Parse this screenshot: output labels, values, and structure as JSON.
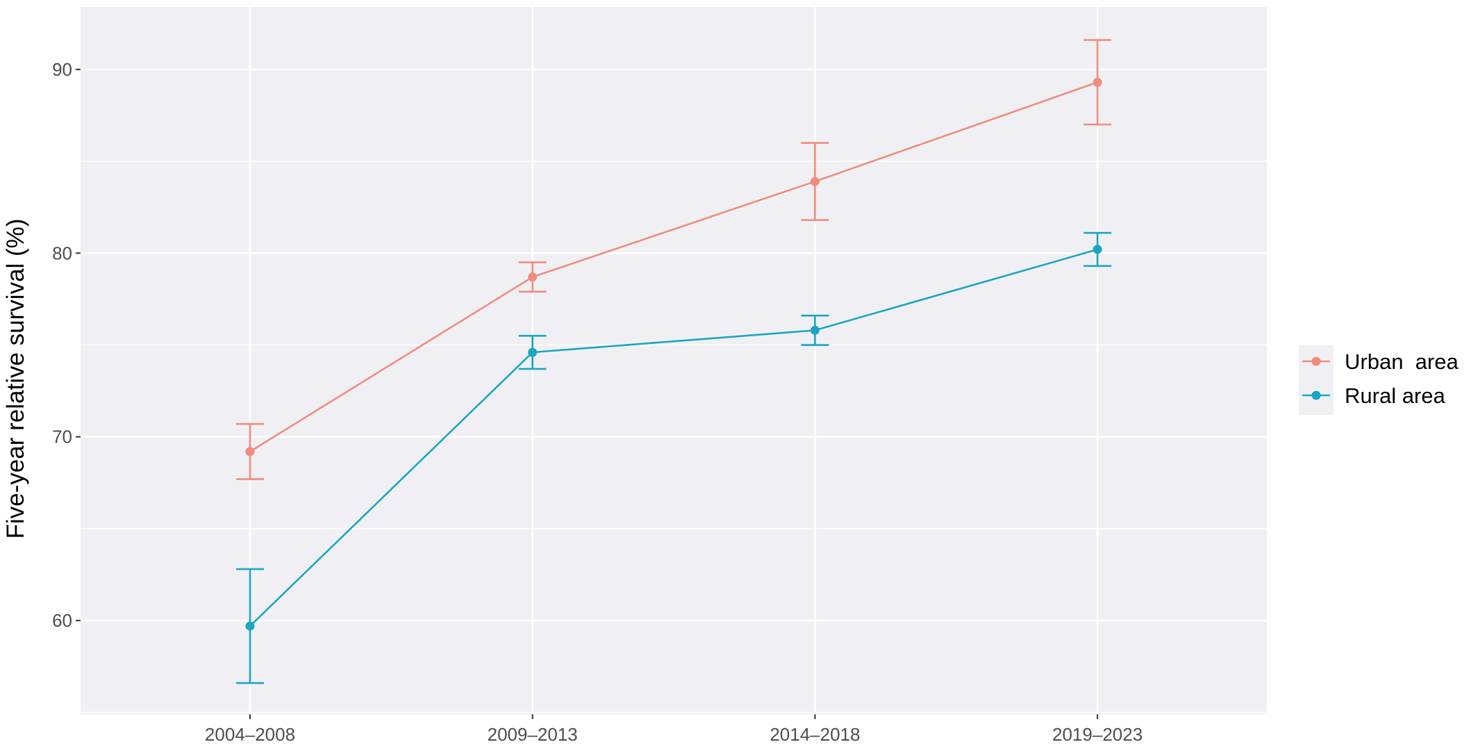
{
  "chart_data": {
    "type": "line",
    "title": "",
    "xlabel": "",
    "ylabel": "Five-year relative survival (%)",
    "categories": [
      "2004–2008",
      "2009–2013",
      "2014–2018",
      "2019–2023"
    ],
    "y_ticks": [
      "60",
      "70",
      "80",
      "90"
    ],
    "ylim": [
      54.9,
      93.4
    ],
    "grid": true,
    "legend_position": "right",
    "panel_background": "#f0f0f4",
    "series": [
      {
        "name": "Urban  area",
        "color": "#f08c7e",
        "values": [
          69.2,
          78.7,
          83.9,
          89.3
        ],
        "lower": [
          67.7,
          77.9,
          81.8,
          87.0
        ],
        "upper": [
          70.7,
          79.5,
          86.0,
          91.6
        ]
      },
      {
        "name": "Rural area",
        "color": "#1aa6c2",
        "values": [
          59.7,
          74.6,
          75.8,
          80.2
        ],
        "lower": [
          56.6,
          73.7,
          75.0,
          79.3
        ],
        "upper": [
          62.8,
          75.5,
          76.6,
          81.1
        ]
      }
    ]
  }
}
